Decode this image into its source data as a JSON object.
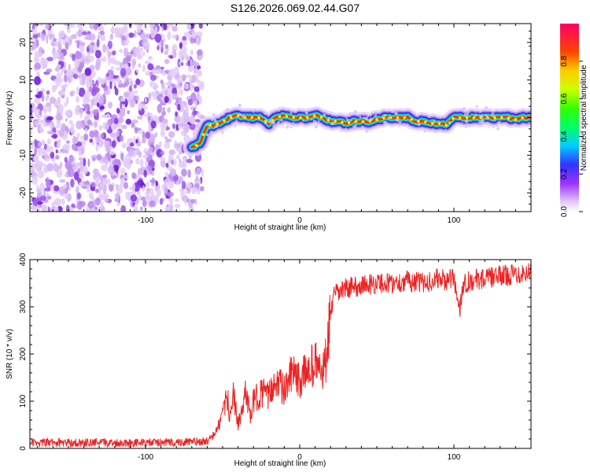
{
  "title": "S126.2026.069.02.44.G07",
  "chart_data": [
    {
      "type": "heatmap",
      "xlabel": "Height of straight line (km)",
      "ylabel": "Frequency (Hz)",
      "xlim": [
        -175,
        150
      ],
      "ylim": [
        -25,
        25
      ],
      "xticks": [
        -100,
        0,
        100
      ],
      "yticks": [
        -20,
        -10,
        0,
        10,
        20
      ],
      "noise_until_x": -63,
      "ridge": {
        "x": [
          -70,
          -65,
          -60,
          -55,
          -50,
          -45,
          -40,
          -35,
          -30,
          -25,
          -20,
          -15,
          -10,
          -5,
          0,
          5,
          10,
          15,
          20,
          25,
          30,
          35,
          40,
          45,
          50,
          55,
          60,
          65,
          70,
          75,
          80,
          85,
          90,
          95,
          100,
          105,
          110,
          115,
          120,
          125,
          130,
          135,
          140,
          145,
          150
        ],
        "y": [
          -8,
          -7,
          -2,
          -2,
          -1,
          0,
          0.5,
          0,
          0,
          0,
          -1.5,
          0,
          0.5,
          0,
          0,
          0,
          0.5,
          0,
          -1,
          -1,
          -1.5,
          -1,
          -1,
          -1,
          -0.5,
          0,
          0,
          0,
          0,
          -1,
          -1,
          -1.5,
          -1.5,
          -2,
          0,
          0,
          0,
          0,
          0,
          0,
          0,
          0,
          -0.5,
          0,
          0
        ]
      },
      "colorbar": {
        "label": "Normalized spectral amplitude",
        "ticks": [
          0.0,
          0.2,
          0.4,
          0.6,
          0.8
        ],
        "range": [
          0,
          1
        ]
      }
    },
    {
      "type": "line",
      "xlabel": "Height of straight line (km)",
      "ylabel": "SNR (10 * v/v)",
      "xlim": [
        -175,
        150
      ],
      "ylim": [
        0,
        400
      ],
      "xticks": [
        -100,
        0,
        100
      ],
      "yticks": [
        0,
        100,
        200,
        300,
        400
      ],
      "series_color": "#ee2222",
      "series": [
        {
          "name": "SNR",
          "x": [
            -175,
            -150,
            -125,
            -100,
            -75,
            -60,
            -55,
            -50,
            -47,
            -45,
            -43,
            -40,
            -37,
            -35,
            -32,
            -30,
            -25,
            -20,
            -15,
            -10,
            -5,
            0,
            5,
            10,
            15,
            18,
            20,
            22,
            25,
            30,
            40,
            50,
            60,
            70,
            80,
            90,
            95,
            100,
            102,
            104,
            106,
            110,
            120,
            130,
            140,
            150
          ],
          "y": [
            12,
            12,
            12,
            12,
            13,
            15,
            30,
            70,
            110,
            60,
            120,
            50,
            80,
            130,
            60,
            100,
            120,
            110,
            150,
            120,
            160,
            140,
            170,
            180,
            160,
            200,
            290,
            320,
            330,
            340,
            345,
            350,
            350,
            355,
            350,
            360,
            355,
            360,
            320,
            300,
            350,
            355,
            360,
            365,
            370,
            375
          ]
        }
      ]
    }
  ],
  "colors": {
    "noise": "#8a2be2",
    "series": "#ee2222"
  }
}
